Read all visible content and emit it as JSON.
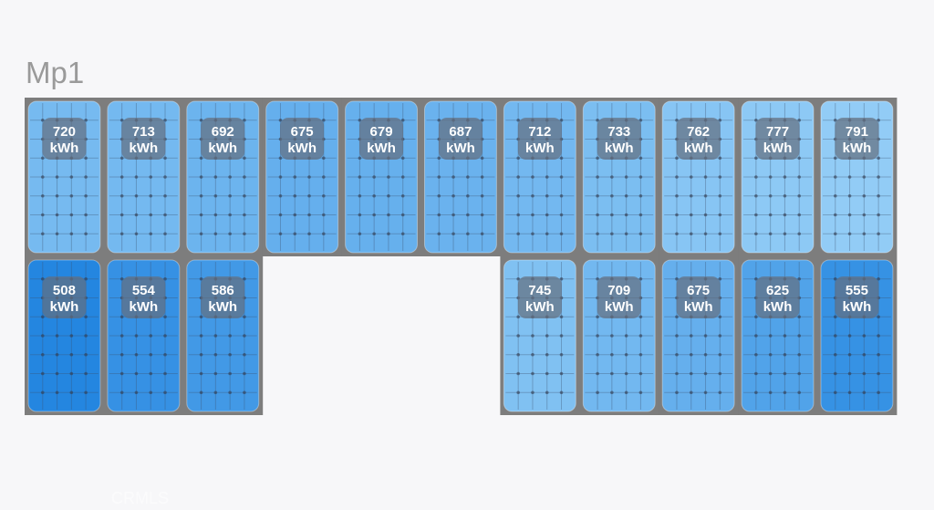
{
  "header": {
    "title": "Mp1"
  },
  "unit": "kWh",
  "rows": [
    [
      720,
      713,
      692,
      675,
      679,
      687,
      712,
      733,
      762,
      777,
      791
    ],
    [
      508,
      554,
      586,
      null,
      null,
      null,
      745,
      709,
      675,
      625,
      555
    ]
  ],
  "watermark": "CRMLS"
}
